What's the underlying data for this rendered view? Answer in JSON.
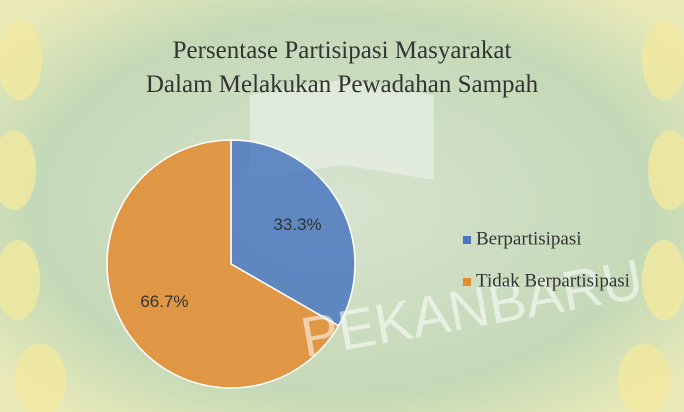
{
  "chart_data": {
    "type": "pie",
    "title": [
      "Persentase Partisipasi Masyarakat",
      "Dalam Melakukan Pewadahan Sampah"
    ],
    "categories": [
      "Berpartisipasi",
      "Tidak Berpartisipasi"
    ],
    "values": [
      33.3,
      66.7
    ],
    "value_labels": [
      "33.3%",
      "66.7%"
    ],
    "colors": [
      "#4a78c0",
      "#e38b30"
    ],
    "legend": "right",
    "watermark": "PEKANBARU"
  }
}
